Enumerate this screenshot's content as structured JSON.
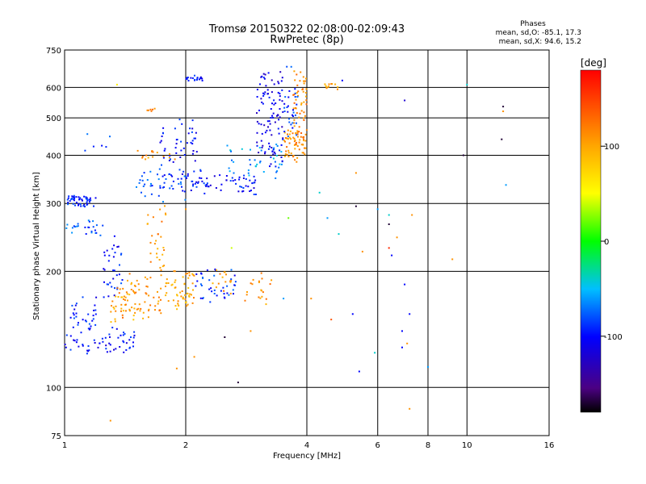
{
  "chart_data": {
    "type": "scatter",
    "title": "Tromsø 20150322 02:08:00-02:09:43",
    "subtitle": "RwPretec (8p)",
    "xlabel": "Frequency [MHz]",
    "ylabel": "Stationary phase Virtual Height [km]",
    "x_scale": "log",
    "y_scale": "log",
    "xlim": [
      1,
      16
    ],
    "ylim": [
      75,
      750
    ],
    "x_ticks": [
      1,
      2,
      4,
      6,
      8,
      10,
      16
    ],
    "y_ticks": [
      75,
      100,
      200,
      300,
      400,
      500,
      600,
      750
    ],
    "x_tick_labels": [
      "1",
      "2",
      "4",
      "6",
      "8",
      "10",
      "16"
    ],
    "y_tick_labels": [
      "75",
      "100",
      "200",
      "300",
      "400",
      "500",
      "600",
      "750"
    ],
    "grid": true,
    "stats": {
      "heading": "Phases",
      "line_o": "mean, sd,O: -85.1, 17.3",
      "line_x": "mean, sd,X:  94.6, 15.2"
    },
    "colorbar": {
      "unit": "[deg]",
      "range": [
        -180,
        180
      ],
      "tick_values": [
        100,
        0,
        -100
      ],
      "tick_labels": [
        "100",
        "0",
        "-100"
      ]
    },
    "clusters": [
      {
        "x0": 1.0,
        "x1": 1.2,
        "h0": 310,
        "h1": 300,
        "phase": -95,
        "n": 50,
        "jitter": 0.03
      },
      {
        "x0": 1.0,
        "x1": 1.25,
        "h0": 265,
        "h1": 255,
        "phase": -80,
        "n": 25,
        "jitter": 0.04
      },
      {
        "x0": 1.0,
        "x1": 1.5,
        "h0": 125,
        "h1": 140,
        "phase": -100,
        "n": 60,
        "jitter": 0.04
      },
      {
        "x0": 1.02,
        "x1": 1.2,
        "h0": 140,
        "h1": 165,
        "phase": -95,
        "n": 30,
        "jitter": 0.05
      },
      {
        "x0": 1.25,
        "x1": 1.4,
        "h0": 175,
        "h1": 240,
        "phase": -95,
        "n": 35,
        "jitter": 0.05
      },
      {
        "x0": 1.3,
        "x1": 1.5,
        "h0": 150,
        "h1": 175,
        "phase": 100,
        "n": 30,
        "jitter": 0.05
      },
      {
        "x0": 1.35,
        "x1": 1.75,
        "h0": 155,
        "h1": 190,
        "phase": 110,
        "n": 60,
        "jitter": 0.05
      },
      {
        "x0": 1.6,
        "x1": 1.8,
        "h0": 200,
        "h1": 300,
        "phase": 110,
        "n": 30,
        "jitter": 0.05
      },
      {
        "x0": 1.75,
        "x1": 2.1,
        "h0": 160,
        "h1": 200,
        "phase": 100,
        "n": 60,
        "jitter": 0.04
      },
      {
        "x0": 2.1,
        "x1": 2.7,
        "h0": 170,
        "h1": 200,
        "phase": -90,
        "n": 40,
        "jitter": 0.03
      },
      {
        "x0": 2.3,
        "x1": 2.6,
        "h0": 175,
        "h1": 205,
        "phase": 110,
        "n": 15,
        "jitter": 0.03
      },
      {
        "x0": 2.8,
        "x1": 3.3,
        "h0": 165,
        "h1": 195,
        "phase": 110,
        "n": 20,
        "jitter": 0.03
      },
      {
        "x0": 1.5,
        "x1": 2.0,
        "h0": 310,
        "h1": 360,
        "phase": -80,
        "n": 40,
        "jitter": 0.03
      },
      {
        "x0": 1.7,
        "x1": 2.2,
        "h0": 340,
        "h1": 480,
        "phase": -100,
        "n": 60,
        "jitter": 0.06
      },
      {
        "x0": 2.0,
        "x1": 3.0,
        "h0": 320,
        "h1": 350,
        "phase": -100,
        "n": 60,
        "jitter": 0.03
      },
      {
        "x0": 2.5,
        "x1": 3.5,
        "h0": 350,
        "h1": 420,
        "phase": -60,
        "n": 40,
        "jitter": 0.04
      },
      {
        "x0": 3.0,
        "x1": 3.5,
        "h0": 380,
        "h1": 640,
        "phase": -110,
        "n": 100,
        "jitter": 0.08
      },
      {
        "x0": 3.5,
        "x1": 4.0,
        "h0": 390,
        "h1": 460,
        "phase": 110,
        "n": 50,
        "jitter": 0.03
      },
      {
        "x0": 3.7,
        "x1": 4.0,
        "h0": 420,
        "h1": 640,
        "phase": 115,
        "n": 60,
        "jitter": 0.08
      },
      {
        "x0": 3.5,
        "x1": 3.8,
        "h0": 450,
        "h1": 640,
        "phase": -90,
        "n": 30,
        "jitter": 0.08
      },
      {
        "x0": 2.0,
        "x1": 2.2,
        "h0": 625,
        "h1": 640,
        "phase": -100,
        "n": 20,
        "jitter": 0.01
      },
      {
        "x0": 1.6,
        "x1": 1.7,
        "h0": 520,
        "h1": 530,
        "phase": 110,
        "n": 6,
        "jitter": 0.01
      },
      {
        "x0": 4.4,
        "x1": 4.8,
        "h0": 600,
        "h1": 615,
        "phase": 100,
        "n": 12,
        "jitter": 0.015
      },
      {
        "x0": 1.1,
        "x1": 1.3,
        "h0": 410,
        "h1": 460,
        "phase": -80,
        "n": 6,
        "jitter": 0.05
      },
      {
        "x0": 1.5,
        "x1": 1.9,
        "h0": 390,
        "h1": 410,
        "phase": 110,
        "n": 15,
        "jitter": 0.02
      }
    ],
    "outliers": [
      {
        "x": 1.35,
        "h": 610,
        "phase": 60
      },
      {
        "x": 4.9,
        "h": 625,
        "phase": -100
      },
      {
        "x": 7.0,
        "h": 555,
        "phase": -120
      },
      {
        "x": 10.0,
        "h": 610,
        "phase": -40
      },
      {
        "x": 12.3,
        "h": 535,
        "phase": -170
      },
      {
        "x": 12.3,
        "h": 520,
        "phase": 110
      },
      {
        "x": 12.2,
        "h": 440,
        "phase": -170
      },
      {
        "x": 9.8,
        "h": 400,
        "phase": -170
      },
      {
        "x": 12.5,
        "h": 335,
        "phase": -60
      },
      {
        "x": 5.3,
        "h": 360,
        "phase": 110
      },
      {
        "x": 4.3,
        "h": 320,
        "phase": -40
      },
      {
        "x": 5.3,
        "h": 295,
        "phase": -170
      },
      {
        "x": 6.0,
        "h": 290,
        "phase": -60
      },
      {
        "x": 6.4,
        "h": 280,
        "phase": -40
      },
      {
        "x": 7.3,
        "h": 280,
        "phase": 110
      },
      {
        "x": 3.6,
        "h": 275,
        "phase": 20
      },
      {
        "x": 4.5,
        "h": 275,
        "phase": -60
      },
      {
        "x": 6.4,
        "h": 265,
        "phase": -170
      },
      {
        "x": 4.8,
        "h": 250,
        "phase": -40
      },
      {
        "x": 6.7,
        "h": 245,
        "phase": 110
      },
      {
        "x": 5.5,
        "h": 225,
        "phase": 110
      },
      {
        "x": 6.4,
        "h": 230,
        "phase": 160
      },
      {
        "x": 6.5,
        "h": 220,
        "phase": -100
      },
      {
        "x": 9.2,
        "h": 215,
        "phase": 110
      },
      {
        "x": 7.0,
        "h": 185,
        "phase": -100
      },
      {
        "x": 4.1,
        "h": 170,
        "phase": 110
      },
      {
        "x": 5.2,
        "h": 155,
        "phase": -100
      },
      {
        "x": 7.2,
        "h": 155,
        "phase": -100
      },
      {
        "x": 4.6,
        "h": 150,
        "phase": 140
      },
      {
        "x": 6.9,
        "h": 140,
        "phase": -100
      },
      {
        "x": 7.1,
        "h": 130,
        "phase": 110
      },
      {
        "x": 6.9,
        "h": 127,
        "phase": -100
      },
      {
        "x": 5.9,
        "h": 123,
        "phase": -40
      },
      {
        "x": 5.4,
        "h": 110,
        "phase": -100
      },
      {
        "x": 8.0,
        "h": 113,
        "phase": -60
      },
      {
        "x": 7.2,
        "h": 88,
        "phase": 110
      },
      {
        "x": 2.7,
        "h": 103,
        "phase": -170
      },
      {
        "x": 2.5,
        "h": 135,
        "phase": -170
      },
      {
        "x": 2.9,
        "h": 140,
        "phase": 110
      },
      {
        "x": 2.1,
        "h": 120,
        "phase": 110
      },
      {
        "x": 1.9,
        "h": 112,
        "phase": 110
      },
      {
        "x": 1.3,
        "h": 82,
        "phase": 110
      },
      {
        "x": 3.5,
        "h": 170,
        "phase": -60
      },
      {
        "x": 2.6,
        "h": 230,
        "phase": 40
      },
      {
        "x": 2.0,
        "h": 290,
        "phase": 110
      }
    ]
  }
}
